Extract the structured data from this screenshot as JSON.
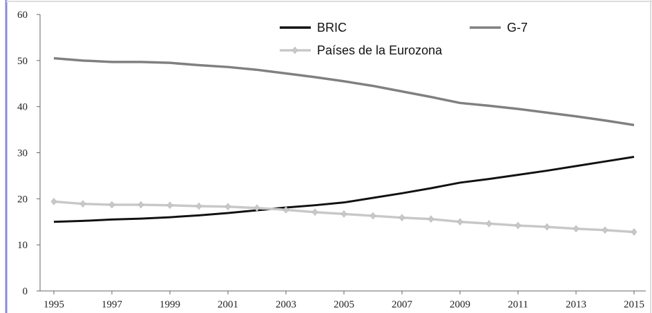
{
  "chart_data": {
    "type": "line",
    "x": [
      1995,
      1996,
      1997,
      1998,
      1999,
      2000,
      2001,
      2002,
      2003,
      2004,
      2005,
      2006,
      2007,
      2008,
      2009,
      2010,
      2011,
      2012,
      2013,
      2014,
      2015
    ],
    "series": [
      {
        "name": "BRIC",
        "color": "#111111",
        "values": [
          15,
          15.2,
          15.5,
          15.7,
          16,
          16.4,
          16.9,
          17.5,
          18.1,
          18.6,
          19.2,
          20.2,
          21.2,
          22.3,
          23.5,
          24.3,
          25.2,
          26.1,
          27.1,
          28.1,
          29.1
        ]
      },
      {
        "name": "G-7",
        "color": "#808080",
        "values": [
          50.5,
          50,
          49.7,
          49.7,
          49.5,
          49,
          48.6,
          48,
          47.2,
          46.4,
          45.5,
          44.5,
          43.3,
          42.1,
          40.8,
          40.2,
          39.5,
          38.7,
          37.9,
          37,
          36
        ]
      },
      {
        "name": "Países de la Eurozona",
        "color": "#c8c8c8",
        "marker": "diamond",
        "values": [
          19.4,
          18.9,
          18.7,
          18.7,
          18.6,
          18.4,
          18.3,
          18,
          17.6,
          17.1,
          16.7,
          16.3,
          15.9,
          15.6,
          15,
          14.6,
          14.2,
          13.9,
          13.5,
          13.2,
          12.8
        ]
      }
    ],
    "xlim": [
      1995,
      2015
    ],
    "xticks": [
      1995,
      1997,
      1999,
      2001,
      2003,
      2005,
      2007,
      2009,
      2011,
      2013,
      2015
    ],
    "ylim": [
      0,
      60
    ],
    "yticks": [
      0,
      10,
      20,
      30,
      40,
      50,
      60
    ]
  }
}
